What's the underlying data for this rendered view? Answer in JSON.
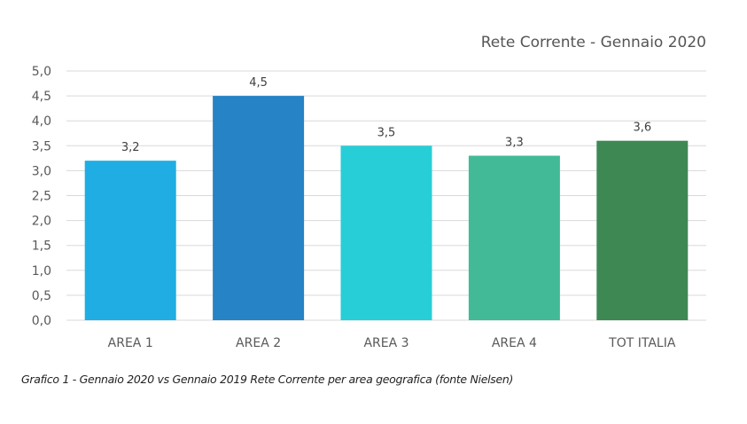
{
  "chart_data": {
    "type": "bar",
    "title": "Rete Corrente - Gennaio 2020",
    "categories": [
      "AREA 1",
      "AREA 2",
      "AREA 3",
      "AREA 4",
      "TOT ITALIA"
    ],
    "values": [
      3.2,
      4.5,
      3.5,
      3.3,
      3.6
    ],
    "data_labels": [
      "3,2",
      "4,5",
      "3,5",
      "3,3",
      "3,6"
    ],
    "colors": [
      "#1fade4",
      "#2683c6",
      "#27ced7",
      "#42ba97",
      "#3e8853"
    ],
    "ylim": [
      0,
      5
    ],
    "yticks": [
      "0,0",
      "0,5",
      "1,0",
      "1,5",
      "2,0",
      "2,5",
      "3,0",
      "3,5",
      "4,0",
      "4,5",
      "5,0"
    ],
    "xlabel": "",
    "ylabel": "",
    "grid": true,
    "legend": "none"
  },
  "caption": "Grafico 1 - Gennaio 2020 vs Gennaio 2019 Rete Corrente per area geografica (fonte Nielsen)"
}
